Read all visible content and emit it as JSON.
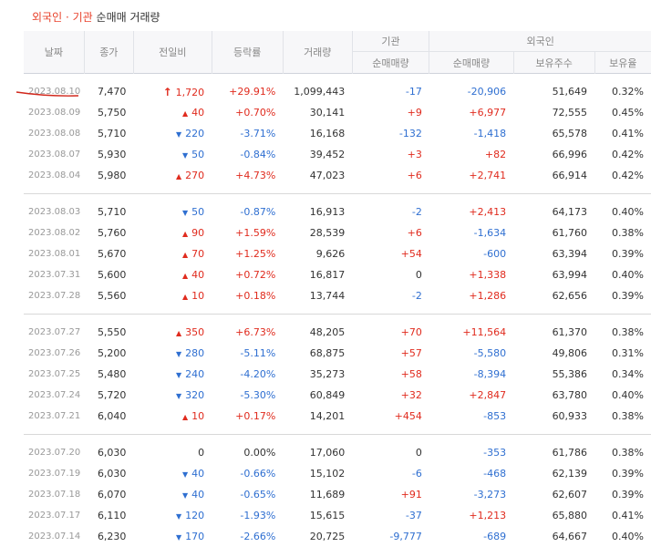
{
  "title": {
    "part1": "외국인",
    "sep": "·",
    "part2": "기관",
    "part3": "순매매 거래량"
  },
  "headers": {
    "date": "날짜",
    "close": "종가",
    "diff": "전일비",
    "rate": "등락률",
    "volume": "거래량",
    "institution": "기관",
    "foreign": "외국인",
    "inst_net": "순매매량",
    "foreign_net": "순매매량",
    "foreign_hold": "보유주수",
    "foreign_ratio": "보유율"
  },
  "colors": {
    "up": "#e02b1e",
    "down": "#2f6fd1",
    "title_accent": "#e8412b"
  },
  "groups": [
    [
      {
        "date": "2023.08.10",
        "close": "7,470",
        "dir": "limit-up",
        "diff": "1,720",
        "rate": "+29.91%",
        "volume": "1,099,443",
        "inst": "-17",
        "fnet": "-20,906",
        "fhold": "51,649",
        "fratio": "0.32%"
      },
      {
        "date": "2023.08.09",
        "close": "5,750",
        "dir": "up",
        "diff": "40",
        "rate": "+0.70%",
        "volume": "30,141",
        "inst": "+9",
        "fnet": "+6,977",
        "fhold": "72,555",
        "fratio": "0.45%"
      },
      {
        "date": "2023.08.08",
        "close": "5,710",
        "dir": "down",
        "diff": "220",
        "rate": "-3.71%",
        "volume": "16,168",
        "inst": "-132",
        "fnet": "-1,418",
        "fhold": "65,578",
        "fratio": "0.41%"
      },
      {
        "date": "2023.08.07",
        "close": "5,930",
        "dir": "down",
        "diff": "50",
        "rate": "-0.84%",
        "volume": "39,452",
        "inst": "+3",
        "fnet": "+82",
        "fhold": "66,996",
        "fratio": "0.42%"
      },
      {
        "date": "2023.08.04",
        "close": "5,980",
        "dir": "up",
        "diff": "270",
        "rate": "+4.73%",
        "volume": "47,023",
        "inst": "+6",
        "fnet": "+2,741",
        "fhold": "66,914",
        "fratio": "0.42%"
      }
    ],
    [
      {
        "date": "2023.08.03",
        "close": "5,710",
        "dir": "down",
        "diff": "50",
        "rate": "-0.87%",
        "volume": "16,913",
        "inst": "-2",
        "fnet": "+2,413",
        "fhold": "64,173",
        "fratio": "0.40%"
      },
      {
        "date": "2023.08.02",
        "close": "5,760",
        "dir": "up",
        "diff": "90",
        "rate": "+1.59%",
        "volume": "28,539",
        "inst": "+6",
        "fnet": "-1,634",
        "fhold": "61,760",
        "fratio": "0.38%"
      },
      {
        "date": "2023.08.01",
        "close": "5,670",
        "dir": "up",
        "diff": "70",
        "rate": "+1.25%",
        "volume": "9,626",
        "inst": "+54",
        "fnet": "-600",
        "fhold": "63,394",
        "fratio": "0.39%"
      },
      {
        "date": "2023.07.31",
        "close": "5,600",
        "dir": "up",
        "diff": "40",
        "rate": "+0.72%",
        "volume": "16,817",
        "inst": "0",
        "fnet": "+1,338",
        "fhold": "63,994",
        "fratio": "0.40%"
      },
      {
        "date": "2023.07.28",
        "close": "5,560",
        "dir": "up",
        "diff": "10",
        "rate": "+0.18%",
        "volume": "13,744",
        "inst": "-2",
        "fnet": "+1,286",
        "fhold": "62,656",
        "fratio": "0.39%"
      }
    ],
    [
      {
        "date": "2023.07.27",
        "close": "5,550",
        "dir": "up",
        "diff": "350",
        "rate": "+6.73%",
        "volume": "48,205",
        "inst": "+70",
        "fnet": "+11,564",
        "fhold": "61,370",
        "fratio": "0.38%"
      },
      {
        "date": "2023.07.26",
        "close": "5,200",
        "dir": "down",
        "diff": "280",
        "rate": "-5.11%",
        "volume": "68,875",
        "inst": "+57",
        "fnet": "-5,580",
        "fhold": "49,806",
        "fratio": "0.31%"
      },
      {
        "date": "2023.07.25",
        "close": "5,480",
        "dir": "down",
        "diff": "240",
        "rate": "-4.20%",
        "volume": "35,273",
        "inst": "+58",
        "fnet": "-8,394",
        "fhold": "55,386",
        "fratio": "0.34%"
      },
      {
        "date": "2023.07.24",
        "close": "5,720",
        "dir": "down",
        "diff": "320",
        "rate": "-5.30%",
        "volume": "60,849",
        "inst": "+32",
        "fnet": "+2,847",
        "fhold": "63,780",
        "fratio": "0.40%"
      },
      {
        "date": "2023.07.21",
        "close": "6,040",
        "dir": "up",
        "diff": "10",
        "rate": "+0.17%",
        "volume": "14,201",
        "inst": "+454",
        "fnet": "-853",
        "fhold": "60,933",
        "fratio": "0.38%"
      }
    ],
    [
      {
        "date": "2023.07.20",
        "close": "6,030",
        "dir": "flat",
        "diff": "0",
        "rate": "0.00%",
        "volume": "17,060",
        "inst": "0",
        "fnet": "-353",
        "fhold": "61,786",
        "fratio": "0.38%"
      },
      {
        "date": "2023.07.19",
        "close": "6,030",
        "dir": "down",
        "diff": "40",
        "rate": "-0.66%",
        "volume": "15,102",
        "inst": "-6",
        "fnet": "-468",
        "fhold": "62,139",
        "fratio": "0.39%"
      },
      {
        "date": "2023.07.18",
        "close": "6,070",
        "dir": "down",
        "diff": "40",
        "rate": "-0.65%",
        "volume": "11,689",
        "inst": "+91",
        "fnet": "-3,273",
        "fhold": "62,607",
        "fratio": "0.39%"
      },
      {
        "date": "2023.07.17",
        "close": "6,110",
        "dir": "down",
        "diff": "120",
        "rate": "-1.93%",
        "volume": "15,615",
        "inst": "-37",
        "fnet": "+1,213",
        "fhold": "65,880",
        "fratio": "0.41%"
      },
      {
        "date": "2023.07.14",
        "close": "6,230",
        "dir": "down",
        "diff": "170",
        "rate": "-2.66%",
        "volume": "20,725",
        "inst": "-9,777",
        "fnet": "-689",
        "fhold": "64,667",
        "fratio": "0.40%"
      }
    ]
  ]
}
